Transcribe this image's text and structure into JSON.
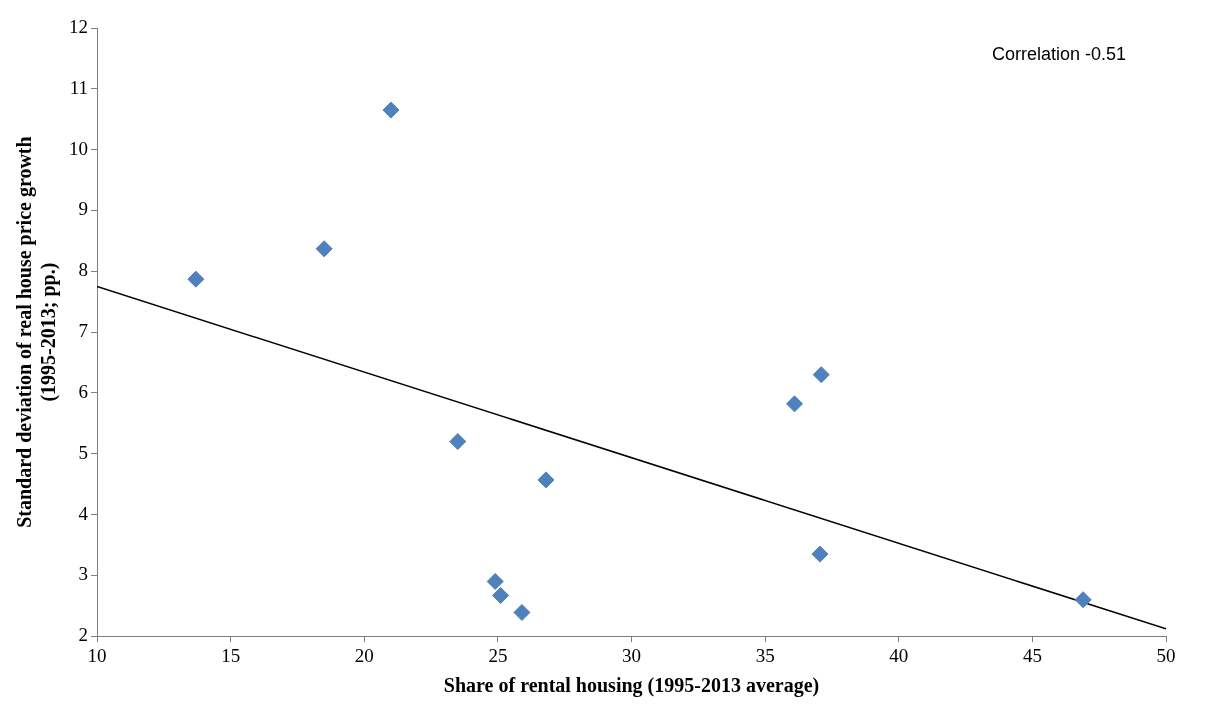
{
  "chart_data": {
    "type": "scatter",
    "xlabel": "Share of rental housing (1995-2013 average)",
    "ylabel": "Standard deviation of real house price growth\n(1995-2013; pp.)",
    "annotations": [
      "Correlation -0.51"
    ],
    "xlim": [
      10,
      50
    ],
    "xticks": [
      10,
      15,
      20,
      25,
      30,
      35,
      40,
      45,
      50
    ],
    "ylim": [
      2,
      12
    ],
    "yticks": [
      2,
      3,
      4,
      5,
      6,
      7,
      8,
      9,
      10,
      11,
      12
    ],
    "grid": false,
    "legend": false,
    "marker": "diamond",
    "series": [
      {
        "color": "#4f81bd",
        "x": [
          13.7,
          18.5,
          21.0,
          23.5,
          26.8,
          24.9,
          25.1,
          25.9,
          36.1,
          37.1,
          37.05,
          46.9
        ],
        "values": [
          7.87,
          8.37,
          10.65,
          5.2,
          4.57,
          2.9,
          2.67,
          2.39,
          5.82,
          6.3,
          3.35,
          2.6
        ]
      },
      {
        "type": "line",
        "color": "#000000",
        "x": [
          10,
          50
        ],
        "values": [
          7.75,
          2.12
        ],
        "marker": "none",
        "line_style": "solid"
      }
    ]
  }
}
